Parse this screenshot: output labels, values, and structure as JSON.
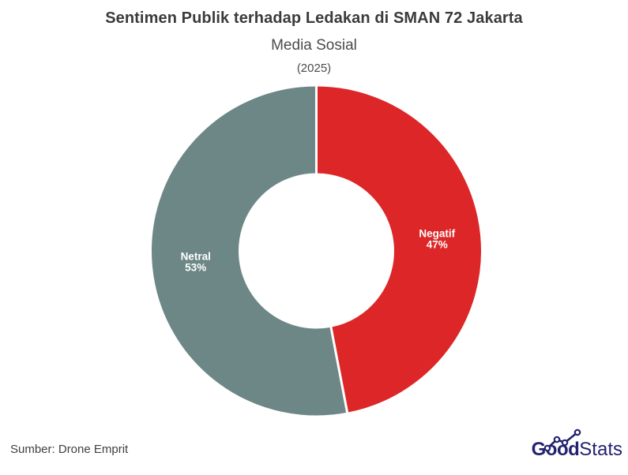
{
  "header": {
    "title": "Sentimen Publik terhadap Ledakan di SMAN 72 Jakarta",
    "subtitle": "Media Sosial",
    "period": "(2025)"
  },
  "chart_data": {
    "type": "pie",
    "subtype": "donut",
    "title": "Sentimen Publik terhadap Ledakan di SMAN 72 Jakarta",
    "subtitle": "Media Sosial",
    "year": "(2025)",
    "categories": [
      "Negatif",
      "Netral"
    ],
    "values": [
      47,
      53
    ],
    "unit": "%",
    "colors": [
      "#dd2627",
      "#6d8786"
    ],
    "label_color": "#ffffff",
    "label_format": "{category} {value}%",
    "start_angle_deg": 0,
    "direction": "clockwise",
    "inner_radius_ratio": 0.46,
    "legend": "none",
    "background": "#ffffff"
  },
  "footer": {
    "source": "Sumber: Drone Emprit",
    "logo": {
      "bold": "Good",
      "light": "Stats",
      "color": "#232270",
      "icon": "trend-line-icon"
    }
  }
}
